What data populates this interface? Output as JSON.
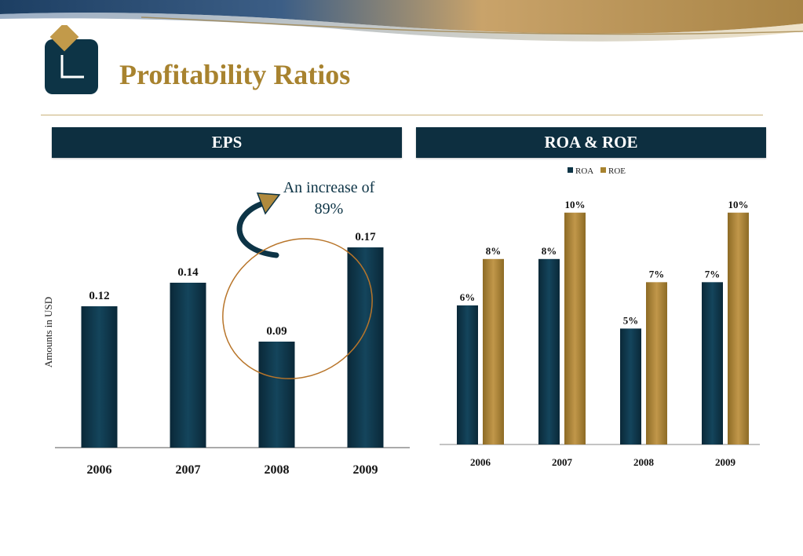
{
  "page": {
    "title": "Profitability Ratios"
  },
  "colors": {
    "navy": "#0d3446",
    "gold": "#a8832f",
    "header_bg": "#0d2f40",
    "circle": "#b8752a"
  },
  "panels": {
    "eps_label": "EPS",
    "roa_label": "ROA & ROE"
  },
  "annotation": {
    "line1": "An increase of",
    "line2": "89%"
  },
  "chart_data": [
    {
      "type": "bar",
      "name": "EPS",
      "categories": [
        "2006",
        "2007",
        "2008",
        "2009"
      ],
      "values": [
        0.12,
        0.14,
        0.09,
        0.17
      ],
      "data_labels": [
        "0.12",
        "0.14",
        "0.09",
        "0.17"
      ],
      "ylabel": "Amounts  in  USD",
      "ylim": [
        0,
        0.2
      ],
      "grid": false,
      "legend": "none"
    },
    {
      "type": "bar",
      "categories": [
        "2006",
        "2007",
        "2008",
        "2009"
      ],
      "series": [
        {
          "name": "ROA",
          "values": [
            6,
            8,
            5,
            7
          ],
          "labels": [
            "6%",
            "8%",
            "5%",
            "7%"
          ],
          "color": "#0d3446"
        },
        {
          "name": "ROE",
          "values": [
            8,
            10,
            7,
            10
          ],
          "labels": [
            "8%",
            "10%",
            "7%",
            "10%"
          ],
          "color": "#a8832f"
        }
      ],
      "ylim": [
        0,
        10.5
      ],
      "grid": false,
      "legend": "top-center"
    }
  ]
}
